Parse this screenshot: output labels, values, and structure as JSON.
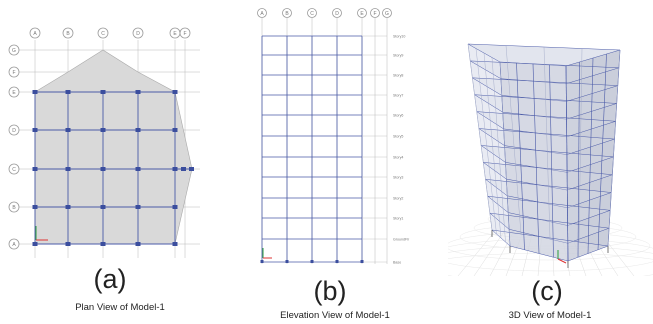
{
  "panels": [
    {
      "letter": "(a)",
      "caption": "Plan View of Model-1"
    },
    {
      "letter": "(b)",
      "caption": "Elevation View of Model-1"
    },
    {
      "letter": "(c)",
      "caption": "3D View of Model-1"
    }
  ],
  "plan": {
    "grid_x": [
      "A",
      "B",
      "C",
      "D",
      "E",
      "F"
    ],
    "grid_y": [
      "A",
      "B",
      "C",
      "D",
      "E",
      "F",
      "G"
    ]
  },
  "elevation": {
    "grid_x": [
      "A",
      "B",
      "C",
      "D",
      "E",
      "F",
      "G"
    ],
    "stories": [
      "Story10",
      "Story9",
      "Story8",
      "Story7",
      "Story6",
      "Story5",
      "Story4",
      "Story3",
      "Story2",
      "Story1",
      "GroundFlr",
      "Base"
    ]
  },
  "colors": {
    "slab_fill": "#d9d9d9",
    "beam": "#4a5aa8",
    "node": "#3b4e9e",
    "grid_line": "#b8b8b8",
    "bubble": "#9a9a9a",
    "caption_text": "#222222"
  }
}
